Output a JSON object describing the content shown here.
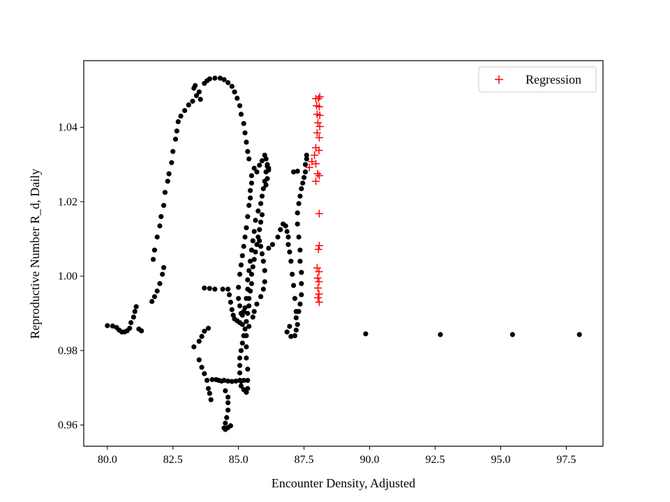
{
  "chart_data": {
    "type": "scatter",
    "title": "",
    "xlabel": "Encounter Density, Adjusted",
    "ylabel": "Reproductive Number R_d, Daily",
    "xlim": [
      79.1,
      98.9
    ],
    "ylim": [
      0.9543,
      1.0579
    ],
    "xticks": [
      80.0,
      82.5,
      85.0,
      87.5,
      90.0,
      92.5,
      95.0,
      97.5
    ],
    "xtick_labels": [
      "80.0",
      "82.5",
      "85.0",
      "87.5",
      "90.0",
      "92.5",
      "95.0",
      "97.5"
    ],
    "yticks": [
      0.96,
      0.98,
      1.0,
      1.02,
      1.04
    ],
    "ytick_labels": [
      "0.96",
      "0.98",
      "1.00",
      "1.02",
      "1.04"
    ],
    "grid": false,
    "legend": {
      "placement": "top-right",
      "entries": [
        "Regression"
      ]
    },
    "colors": {
      "scatter": "#000000",
      "regression": "#ff0000"
    },
    "series": [
      {
        "marker": "dot",
        "points": [
          [
            80.0,
            0.9867
          ],
          [
            80.2,
            0.9866
          ],
          [
            80.35,
            0.9862
          ],
          [
            80.45,
            0.9855
          ],
          [
            80.55,
            0.985
          ],
          [
            80.65,
            0.985
          ],
          [
            80.75,
            0.9853
          ],
          [
            80.85,
            0.986
          ],
          [
            80.9,
            0.9875
          ],
          [
            81.0,
            0.989
          ],
          [
            81.05,
            0.9905
          ],
          [
            81.1,
            0.9918
          ],
          [
            81.2,
            0.9858
          ],
          [
            81.3,
            0.9853
          ],
          [
            81.7,
            0.9932
          ],
          [
            81.8,
            0.9945
          ],
          [
            81.9,
            0.996
          ],
          [
            82.0,
            0.998
          ],
          [
            82.1,
            1.0005
          ],
          [
            82.15,
            1.0023
          ],
          [
            81.75,
            1.0045
          ],
          [
            81.8,
            1.007
          ],
          [
            81.9,
            1.0105
          ],
          [
            82.0,
            1.0135
          ],
          [
            82.05,
            1.016
          ],
          [
            82.15,
            1.019
          ],
          [
            82.2,
            1.0225
          ],
          [
            82.3,
            1.0255
          ],
          [
            82.35,
            1.0275
          ],
          [
            82.45,
            1.0305
          ],
          [
            82.5,
            1.0335
          ],
          [
            82.6,
            1.0368
          ],
          [
            82.65,
            1.039
          ],
          [
            82.7,
            1.0415
          ],
          [
            82.8,
            1.043
          ],
          [
            82.95,
            1.0445
          ],
          [
            83.1,
            1.046
          ],
          [
            83.25,
            1.047
          ],
          [
            83.4,
            1.0485
          ],
          [
            83.5,
            1.0495
          ],
          [
            83.55,
            1.0475
          ],
          [
            83.3,
            1.0505
          ],
          [
            83.35,
            1.0512
          ],
          [
            83.7,
            1.0518
          ],
          [
            83.8,
            1.0525
          ],
          [
            83.9,
            1.053
          ],
          [
            84.1,
            1.0532
          ],
          [
            84.3,
            1.0532
          ],
          [
            84.45,
            1.0528
          ],
          [
            84.6,
            1.052
          ],
          [
            84.75,
            1.051
          ],
          [
            84.85,
            1.0495
          ],
          [
            84.95,
            1.0478
          ],
          [
            85.05,
            1.0458
          ],
          [
            85.1,
            1.0435
          ],
          [
            85.2,
            1.041
          ],
          [
            85.25,
            1.0385
          ],
          [
            85.3,
            1.036
          ],
          [
            85.35,
            1.0335
          ],
          [
            85.4,
            1.0315
          ],
          [
            85.6,
            1.029
          ],
          [
            85.7,
            1.028
          ],
          [
            85.8,
            1.0298
          ],
          [
            85.9,
            1.031
          ],
          [
            86.0,
            1.0325
          ],
          [
            86.05,
            1.0315
          ],
          [
            86.1,
            1.03
          ],
          [
            86.15,
            1.029
          ],
          [
            85.5,
            1.027
          ],
          [
            85.5,
            1.025
          ],
          [
            85.45,
            1.023
          ],
          [
            85.45,
            1.021
          ],
          [
            85.4,
            1.019
          ],
          [
            85.35,
            1.016
          ],
          [
            85.3,
            1.013
          ],
          [
            85.25,
            1.0105
          ],
          [
            85.2,
            1.008
          ],
          [
            85.15,
            1.0055
          ],
          [
            85.1,
            1.003
          ],
          [
            85.05,
            1.0005
          ],
          [
            85.0,
            0.997
          ],
          [
            85.0,
            0.994
          ],
          [
            85.05,
            0.992
          ],
          [
            85.1,
            0.99
          ],
          [
            85.15,
            0.9895
          ],
          [
            85.2,
            0.9905
          ],
          [
            85.25,
            0.9915
          ],
          [
            85.3,
            0.994
          ],
          [
            85.35,
            0.9965
          ],
          [
            85.35,
            0.999
          ],
          [
            85.4,
            1.0015
          ],
          [
            85.45,
            1.004
          ],
          [
            85.5,
            1.007
          ],
          [
            85.55,
            1.0095
          ],
          [
            85.6,
            1.012
          ],
          [
            85.65,
            1.015
          ],
          [
            85.75,
            1.0175
          ],
          [
            85.85,
            1.0195
          ],
          [
            85.9,
            1.0215
          ],
          [
            85.95,
            1.0235
          ],
          [
            86.0,
            1.0255
          ],
          [
            86.05,
            1.028
          ],
          [
            86.1,
            1.0295
          ],
          [
            86.15,
            1.0285
          ],
          [
            86.1,
            1.0262
          ],
          [
            86.05,
            1.0245
          ],
          [
            85.9,
            1.0165
          ],
          [
            85.85,
            1.0145
          ],
          [
            85.8,
            1.0125
          ],
          [
            85.75,
            1.0105
          ],
          [
            85.7,
            1.0085
          ],
          [
            85.65,
            1.0065
          ],
          [
            85.6,
            1.0045
          ],
          [
            85.55,
            1.0025
          ],
          [
            85.5,
            1.0005
          ],
          [
            85.5,
            0.998
          ],
          [
            85.45,
            0.996
          ],
          [
            85.4,
            0.994
          ],
          [
            85.4,
            0.992
          ],
          [
            85.35,
            0.99
          ],
          [
            85.3,
            0.9878
          ],
          [
            85.25,
            0.9858
          ],
          [
            85.2,
            0.984
          ],
          [
            85.15,
            0.982
          ],
          [
            85.1,
            0.98
          ],
          [
            85.05,
            0.978
          ],
          [
            85.05,
            0.976
          ],
          [
            85.05,
            0.974
          ],
          [
            85.05,
            0.972
          ],
          [
            85.1,
            0.9705
          ],
          [
            85.2,
            0.9695
          ],
          [
            85.3,
            0.9688
          ],
          [
            85.35,
            0.9698
          ],
          [
            85.35,
            0.972
          ],
          [
            85.35,
            0.975
          ],
          [
            85.3,
            0.978
          ],
          [
            85.3,
            0.981
          ],
          [
            85.3,
            0.984
          ],
          [
            85.4,
            0.9865
          ],
          [
            85.55,
            0.989
          ],
          [
            85.6,
            0.9905
          ],
          [
            85.7,
            0.9925
          ],
          [
            85.85,
            0.9945
          ],
          [
            85.95,
            0.9965
          ],
          [
            86.0,
            0.9985
          ],
          [
            86.0,
            1.0015
          ],
          [
            85.95,
            1.004
          ],
          [
            85.9,
            1.006
          ],
          [
            85.85,
            1.008
          ],
          [
            85.8,
            1.0095
          ],
          [
            86.15,
            1.0075
          ],
          [
            86.3,
            1.0085
          ],
          [
            86.5,
            1.0105
          ],
          [
            86.6,
            1.0125
          ],
          [
            86.7,
            1.014
          ],
          [
            86.8,
            1.0135
          ],
          [
            86.85,
            1.012
          ],
          [
            86.9,
            1.0105
          ],
          [
            86.9,
            1.0085
          ],
          [
            86.95,
            1.0065
          ],
          [
            87.0,
            1.004
          ],
          [
            87.05,
            1.0005
          ],
          [
            87.1,
            0.9975
          ],
          [
            87.15,
            0.994
          ],
          [
            87.2,
            0.9905
          ],
          [
            87.25,
            0.987
          ],
          [
            87.2,
            0.9855
          ],
          [
            87.15,
            0.984
          ],
          [
            87.0,
            0.9838
          ],
          [
            86.85,
            0.985
          ],
          [
            86.95,
            0.9865
          ],
          [
            87.2,
            0.9888
          ],
          [
            87.3,
            0.9905
          ],
          [
            87.35,
            0.9925
          ],
          [
            87.4,
            0.995
          ],
          [
            87.4,
            0.998
          ],
          [
            87.4,
            1.001
          ],
          [
            87.35,
            1.004
          ],
          [
            87.35,
            1.007
          ],
          [
            87.3,
            1.0105
          ],
          [
            87.25,
            1.014
          ],
          [
            87.25,
            1.017
          ],
          [
            87.3,
            1.0195
          ],
          [
            87.35,
            1.0215
          ],
          [
            87.4,
            1.0235
          ],
          [
            87.45,
            1.025
          ],
          [
            87.5,
            1.0265
          ],
          [
            87.55,
            1.028
          ],
          [
            87.55,
            1.03
          ],
          [
            87.6,
            1.0315
          ],
          [
            87.6,
            1.0325
          ],
          [
            87.25,
            1.0282
          ],
          [
            87.1,
            1.028
          ],
          [
            83.3,
            0.981
          ],
          [
            83.5,
            0.9825
          ],
          [
            83.6,
            0.9838
          ],
          [
            83.7,
            0.9852
          ],
          [
            83.85,
            0.986
          ],
          [
            83.5,
            0.9775
          ],
          [
            83.6,
            0.9755
          ],
          [
            83.7,
            0.9738
          ],
          [
            83.8,
            0.972
          ],
          [
            83.85,
            0.9698
          ],
          [
            83.9,
            0.9685
          ],
          [
            83.95,
            0.9668
          ],
          [
            84.0,
            0.9722
          ],
          [
            84.15,
            0.9722
          ],
          [
            84.25,
            0.972
          ],
          [
            84.35,
            0.9718
          ],
          [
            84.45,
            0.972
          ],
          [
            84.6,
            0.9718
          ],
          [
            84.75,
            0.9717
          ],
          [
            84.9,
            0.9718
          ],
          [
            85.1,
            0.9718
          ],
          [
            85.2,
            0.972
          ],
          [
            84.5,
            0.9692
          ],
          [
            84.6,
            0.9675
          ],
          [
            84.6,
            0.966
          ],
          [
            84.6,
            0.964
          ],
          [
            84.55,
            0.962
          ],
          [
            84.5,
            0.9605
          ],
          [
            84.45,
            0.9592
          ],
          [
            84.5,
            0.9588
          ],
          [
            84.6,
            0.9593
          ],
          [
            84.7,
            0.9598
          ],
          [
            83.7,
            0.9968
          ],
          [
            83.9,
            0.9967
          ],
          [
            84.1,
            0.9965
          ],
          [
            84.4,
            0.9965
          ],
          [
            84.6,
            0.9965
          ],
          [
            84.65,
            0.995
          ],
          [
            84.7,
            0.993
          ],
          [
            84.75,
            0.991
          ],
          [
            84.8,
            0.9895
          ],
          [
            84.85,
            0.9885
          ],
          [
            84.95,
            0.988
          ],
          [
            85.05,
            0.9875
          ],
          [
            85.15,
            0.987
          ]
        ]
      },
      {
        "marker": "dot",
        "points": [
          [
            89.85,
            0.9845
          ],
          [
            92.7,
            0.9843
          ],
          [
            95.45,
            0.9843
          ],
          [
            98.0,
            0.9843
          ]
        ]
      },
      {
        "name": "Regression",
        "marker": "plus",
        "points": [
          [
            87.95,
            1.0477
          ],
          [
            88.05,
            1.0477
          ],
          [
            88.1,
            1.0482
          ],
          [
            87.98,
            1.0458
          ],
          [
            88.08,
            1.0455
          ],
          [
            88.0,
            1.0435
          ],
          [
            88.1,
            1.0432
          ],
          [
            88.03,
            1.0412
          ],
          [
            88.1,
            1.0402
          ],
          [
            88.0,
            1.0385
          ],
          [
            88.08,
            1.0372
          ],
          [
            87.95,
            1.0345
          ],
          [
            88.07,
            1.0338
          ],
          [
            87.9,
            1.0325
          ],
          [
            87.95,
            1.0302
          ],
          [
            87.8,
            1.0308
          ],
          [
            87.7,
            1.0292
          ],
          [
            88.02,
            1.0275
          ],
          [
            88.08,
            1.027
          ],
          [
            87.95,
            1.0255
          ],
          [
            88.08,
            1.0168
          ],
          [
            88.08,
            1.0082
          ],
          [
            88.05,
            1.0072
          ],
          [
            88.0,
            1.0022
          ],
          [
            88.07,
            1.0012
          ],
          [
            88.02,
            0.9995
          ],
          [
            88.07,
            0.9985
          ],
          [
            88.03,
            0.9968
          ],
          [
            88.07,
            0.9952
          ],
          [
            88.03,
            0.9942
          ],
          [
            88.08,
            0.993
          ]
        ]
      }
    ]
  }
}
